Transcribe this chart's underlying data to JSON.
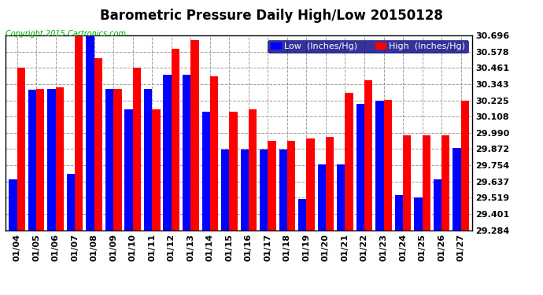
{
  "title": "Barometric Pressure Daily High/Low 20150128",
  "copyright": "Copyright 2015 Cartronics.com",
  "legend_low": "Low  (Inches/Hg)",
  "legend_high": "High  (Inches/Hg)",
  "dates": [
    "01/04",
    "01/05",
    "01/06",
    "01/07",
    "01/08",
    "01/09",
    "01/10",
    "01/11",
    "01/12",
    "01/13",
    "01/14",
    "01/15",
    "01/16",
    "01/17",
    "01/18",
    "01/19",
    "01/20",
    "01/21",
    "01/22",
    "01/23",
    "01/24",
    "01/25",
    "01/26",
    "01/27"
  ],
  "low": [
    29.65,
    30.3,
    30.31,
    29.69,
    30.69,
    30.31,
    30.16,
    30.31,
    30.41,
    30.41,
    30.14,
    29.87,
    29.87,
    29.87,
    29.87,
    29.51,
    29.76,
    29.76,
    30.2,
    30.22,
    29.54,
    29.52,
    29.65,
    29.88
  ],
  "high": [
    30.46,
    30.31,
    30.32,
    30.69,
    30.53,
    30.31,
    30.46,
    30.16,
    30.6,
    30.66,
    30.4,
    30.14,
    30.16,
    29.93,
    29.93,
    29.95,
    29.96,
    30.28,
    30.37,
    30.23,
    29.97,
    29.97,
    29.97,
    30.22
  ],
  "ymin": 29.284,
  "ymax": 30.696,
  "yticks": [
    29.284,
    29.401,
    29.519,
    29.637,
    29.754,
    29.872,
    29.99,
    30.108,
    30.225,
    30.343,
    30.461,
    30.578,
    30.696
  ],
  "bar_color_low": "#0000ff",
  "bar_color_high": "#ff0000",
  "bg_color": "#ffffff",
  "grid_color": "#888888",
  "title_fontsize": 12,
  "tick_fontsize": 8,
  "copyright_fontsize": 7,
  "legend_fontsize": 8
}
